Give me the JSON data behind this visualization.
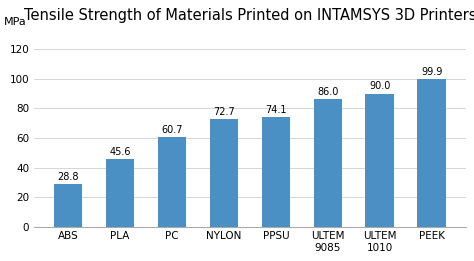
{
  "title": "Tensile Strength of Materials Printed on INTAMSYS 3D Printers",
  "mpa_label": "MPa",
  "categories": [
    "ABS",
    "PLA",
    "PC",
    "NYLON",
    "PPSU",
    "ULTEM\n9085",
    "ULTEM\n1010",
    "PEEK"
  ],
  "values": [
    28.8,
    45.6,
    60.7,
    72.7,
    74.1,
    86.0,
    90.0,
    99.9
  ],
  "bar_color": "#4a90c4",
  "ylim": [
    0,
    130
  ],
  "yticks": [
    0,
    20,
    40,
    60,
    80,
    100,
    120
  ],
  "title_fontsize": 10.5,
  "tick_fontsize": 7.5,
  "mpa_fontsize": 8.0,
  "value_fontsize": 7.0,
  "background_color": "#ffffff",
  "plot_bg_color": "#ffffff",
  "grid_color": "#d0d0d0"
}
